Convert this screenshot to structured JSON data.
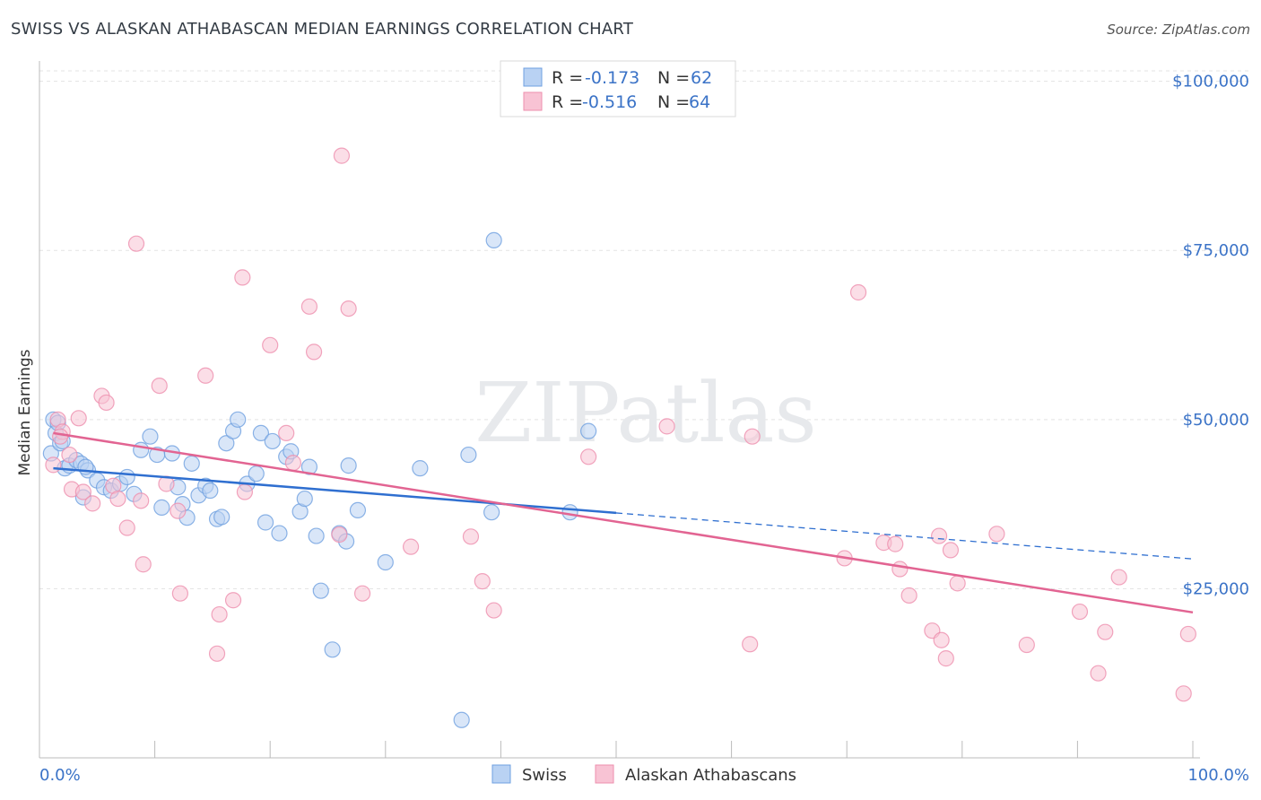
{
  "header": {
    "title": "SWISS VS ALASKAN ATHABASCAN MEDIAN EARNINGS CORRELATION CHART",
    "source": "Source: ZipAtlas.com"
  },
  "watermark": "ZIPatlas",
  "colors": {
    "swiss": "#6fa0e0",
    "swiss_fill": "#b9d2f3",
    "swiss_line": "#2f6fd0",
    "alaskan": "#ee8fae",
    "alaskan_fill": "#f8c3d4",
    "alaskan_line": "#e26492",
    "accent_text": "#3b73c7"
  },
  "legend": {
    "rows": [
      {
        "r_label": "R =",
        "r_value": "-0.173",
        "n_label": "N =",
        "n_value": "62"
      },
      {
        "r_label": "R =",
        "r_value": "-0.516",
        "n_label": "N =",
        "n_value": "64"
      }
    ]
  },
  "bottom_legend": [
    "Swiss",
    "Alaskan Athabascans"
  ],
  "chart_data": {
    "type": "scatter",
    "ylabel": "Median Earnings",
    "xlim": [
      0,
      100
    ],
    "ylim": [
      0,
      103000
    ],
    "x_tick_labels": [
      "0.0%",
      "100.0%"
    ],
    "y_ticks": [
      25000,
      50000,
      75000,
      100000
    ],
    "y_tick_labels": [
      "$25,000",
      "$50,000",
      "$75,000",
      "$100,000"
    ],
    "grid": "horizontal dashed",
    "legend_position": "top-center",
    "series": [
      {
        "name": "Swiss",
        "r": -0.173,
        "n": 62,
        "trend": {
          "x0": 1.2,
          "y0": 42800,
          "x1": 50,
          "y1": 36200,
          "dashed_to_x": 100,
          "dashed_to_y": 29400
        },
        "points": [
          [
            1.0,
            45000
          ],
          [
            1.2,
            50000
          ],
          [
            1.4,
            48000
          ],
          [
            1.8,
            46500
          ],
          [
            2.2,
            42800
          ],
          [
            2.6,
            43200
          ],
          [
            3.2,
            44000
          ],
          [
            3.6,
            43500
          ],
          [
            4.2,
            42500
          ],
          [
            5.0,
            41000
          ],
          [
            5.6,
            40000
          ],
          [
            6.2,
            39500
          ],
          [
            7.0,
            40500
          ],
          [
            7.6,
            41500
          ],
          [
            8.2,
            39000
          ],
          [
            8.8,
            45500
          ],
          [
            9.6,
            47500
          ],
          [
            10.2,
            44800
          ],
          [
            10.6,
            37000
          ],
          [
            11.5,
            45000
          ],
          [
            12.0,
            40000
          ],
          [
            12.4,
            37500
          ],
          [
            12.8,
            35500
          ],
          [
            13.2,
            43500
          ],
          [
            13.8,
            38800
          ],
          [
            14.4,
            40200
          ],
          [
            14.8,
            39500
          ],
          [
            15.4,
            35300
          ],
          [
            15.8,
            35600
          ],
          [
            16.2,
            46500
          ],
          [
            16.8,
            48300
          ],
          [
            17.2,
            50000
          ],
          [
            18.0,
            40500
          ],
          [
            18.8,
            42000
          ],
          [
            19.2,
            48000
          ],
          [
            19.6,
            34800
          ],
          [
            20.2,
            46800
          ],
          [
            20.8,
            33200
          ],
          [
            21.4,
            44500
          ],
          [
            21.8,
            45300
          ],
          [
            22.6,
            36400
          ],
          [
            23.0,
            38300
          ],
          [
            23.4,
            43000
          ],
          [
            24.0,
            32800
          ],
          [
            24.4,
            24700
          ],
          [
            25.4,
            16000
          ],
          [
            26.0,
            33200
          ],
          [
            26.6,
            32000
          ],
          [
            26.8,
            43200
          ],
          [
            27.6,
            36600
          ],
          [
            30.0,
            28900
          ],
          [
            33.0,
            42800
          ],
          [
            36.6,
            5600
          ],
          [
            37.2,
            44800
          ],
          [
            39.2,
            36300
          ],
          [
            39.4,
            76500
          ],
          [
            46.0,
            36300
          ],
          [
            47.6,
            48300
          ],
          [
            3.8,
            38500
          ],
          [
            1.6,
            49500
          ],
          [
            2.0,
            46800
          ],
          [
            4.0,
            43000
          ]
        ]
      },
      {
        "name": "Alaskan Athabascans",
        "r": -0.516,
        "n": 64,
        "trend": {
          "x0": 1.2,
          "y0": 48000,
          "x1": 100,
          "y1": 21500
        },
        "points": [
          [
            1.2,
            43300
          ],
          [
            1.6,
            50000
          ],
          [
            2.0,
            48200
          ],
          [
            2.6,
            44800
          ],
          [
            2.8,
            39700
          ],
          [
            3.4,
            50200
          ],
          [
            3.8,
            39300
          ],
          [
            4.6,
            37600
          ],
          [
            5.4,
            53500
          ],
          [
            5.8,
            52500
          ],
          [
            6.4,
            40200
          ],
          [
            6.8,
            38300
          ],
          [
            7.6,
            34000
          ],
          [
            8.4,
            76000
          ],
          [
            8.8,
            38000
          ],
          [
            9.0,
            28600
          ],
          [
            10.4,
            55000
          ],
          [
            11.0,
            40500
          ],
          [
            12.0,
            36500
          ],
          [
            12.2,
            24300
          ],
          [
            14.4,
            56500
          ],
          [
            15.4,
            15400
          ],
          [
            15.6,
            21200
          ],
          [
            16.8,
            23300
          ],
          [
            17.6,
            71000
          ],
          [
            17.8,
            39300
          ],
          [
            20.0,
            61000
          ],
          [
            21.4,
            48000
          ],
          [
            22.0,
            43600
          ],
          [
            23.4,
            66700
          ],
          [
            23.8,
            60000
          ],
          [
            26.0,
            33000
          ],
          [
            26.2,
            89000
          ],
          [
            26.8,
            66400
          ],
          [
            28.0,
            24300
          ],
          [
            32.2,
            31200
          ],
          [
            37.4,
            32700
          ],
          [
            38.4,
            26100
          ],
          [
            39.4,
            21800
          ],
          [
            47.6,
            44500
          ],
          [
            54.4,
            49000
          ],
          [
            61.6,
            16800
          ],
          [
            61.8,
            47500
          ],
          [
            69.8,
            29500
          ],
          [
            71.0,
            68800
          ],
          [
            73.2,
            31800
          ],
          [
            74.2,
            31600
          ],
          [
            74.6,
            27900
          ],
          [
            75.4,
            24000
          ],
          [
            77.4,
            18800
          ],
          [
            78.0,
            32800
          ],
          [
            78.2,
            17400
          ],
          [
            78.6,
            14700
          ],
          [
            79.0,
            30700
          ],
          [
            79.6,
            25800
          ],
          [
            83.0,
            33100
          ],
          [
            85.6,
            16700
          ],
          [
            90.2,
            21600
          ],
          [
            91.8,
            12500
          ],
          [
            92.4,
            18600
          ],
          [
            93.6,
            26700
          ],
          [
            99.2,
            9500
          ],
          [
            99.6,
            18300
          ],
          [
            1.8,
            47500
          ]
        ]
      }
    ]
  }
}
